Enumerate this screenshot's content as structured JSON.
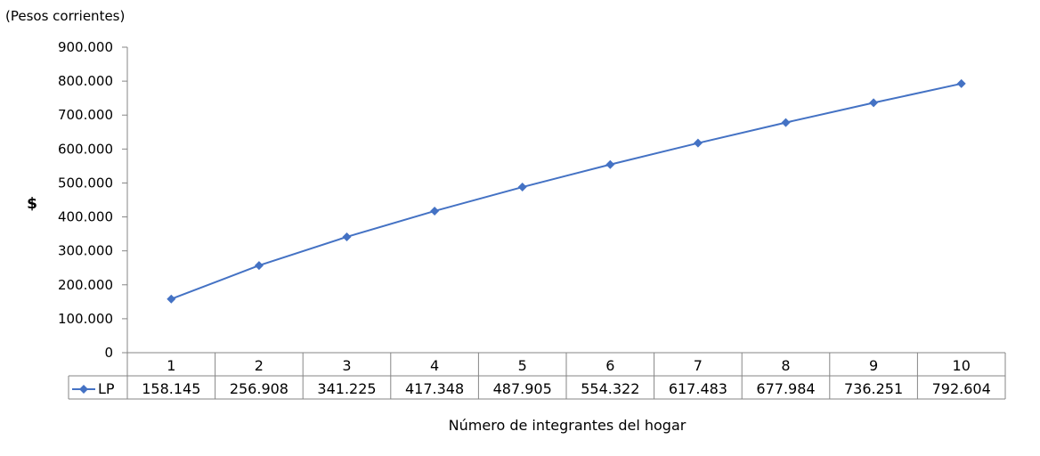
{
  "chart_data": {
    "type": "line",
    "units_note": "(Pesos corrientes)",
    "ylabel": "$",
    "xlabel": "Número de integrantes del hogar",
    "categories": [
      "1",
      "2",
      "3",
      "4",
      "5",
      "6",
      "7",
      "8",
      "9",
      "10"
    ],
    "ylim": [
      0,
      900000
    ],
    "yticks": [
      0,
      100000,
      200000,
      300000,
      400000,
      500000,
      600000,
      700000,
      800000,
      900000
    ],
    "ytick_labels": [
      "0",
      "100.000",
      "200.000",
      "300.000",
      "400.000",
      "500.000",
      "600.000",
      "700.000",
      "800.000",
      "900.000"
    ],
    "series": [
      {
        "name": "LP",
        "color": "#4472C4",
        "marker": "diamond",
        "values": [
          158145,
          256908,
          341225,
          417348,
          487905,
          554322,
          617483,
          677984,
          736251,
          792604
        ],
        "value_labels": [
          "158.145",
          "256.908",
          "341.225",
          "417.348",
          "487.905",
          "554.322",
          "617.483",
          "677.984",
          "736.251",
          "792.604"
        ]
      }
    ],
    "data_table": true,
    "grid": false
  }
}
